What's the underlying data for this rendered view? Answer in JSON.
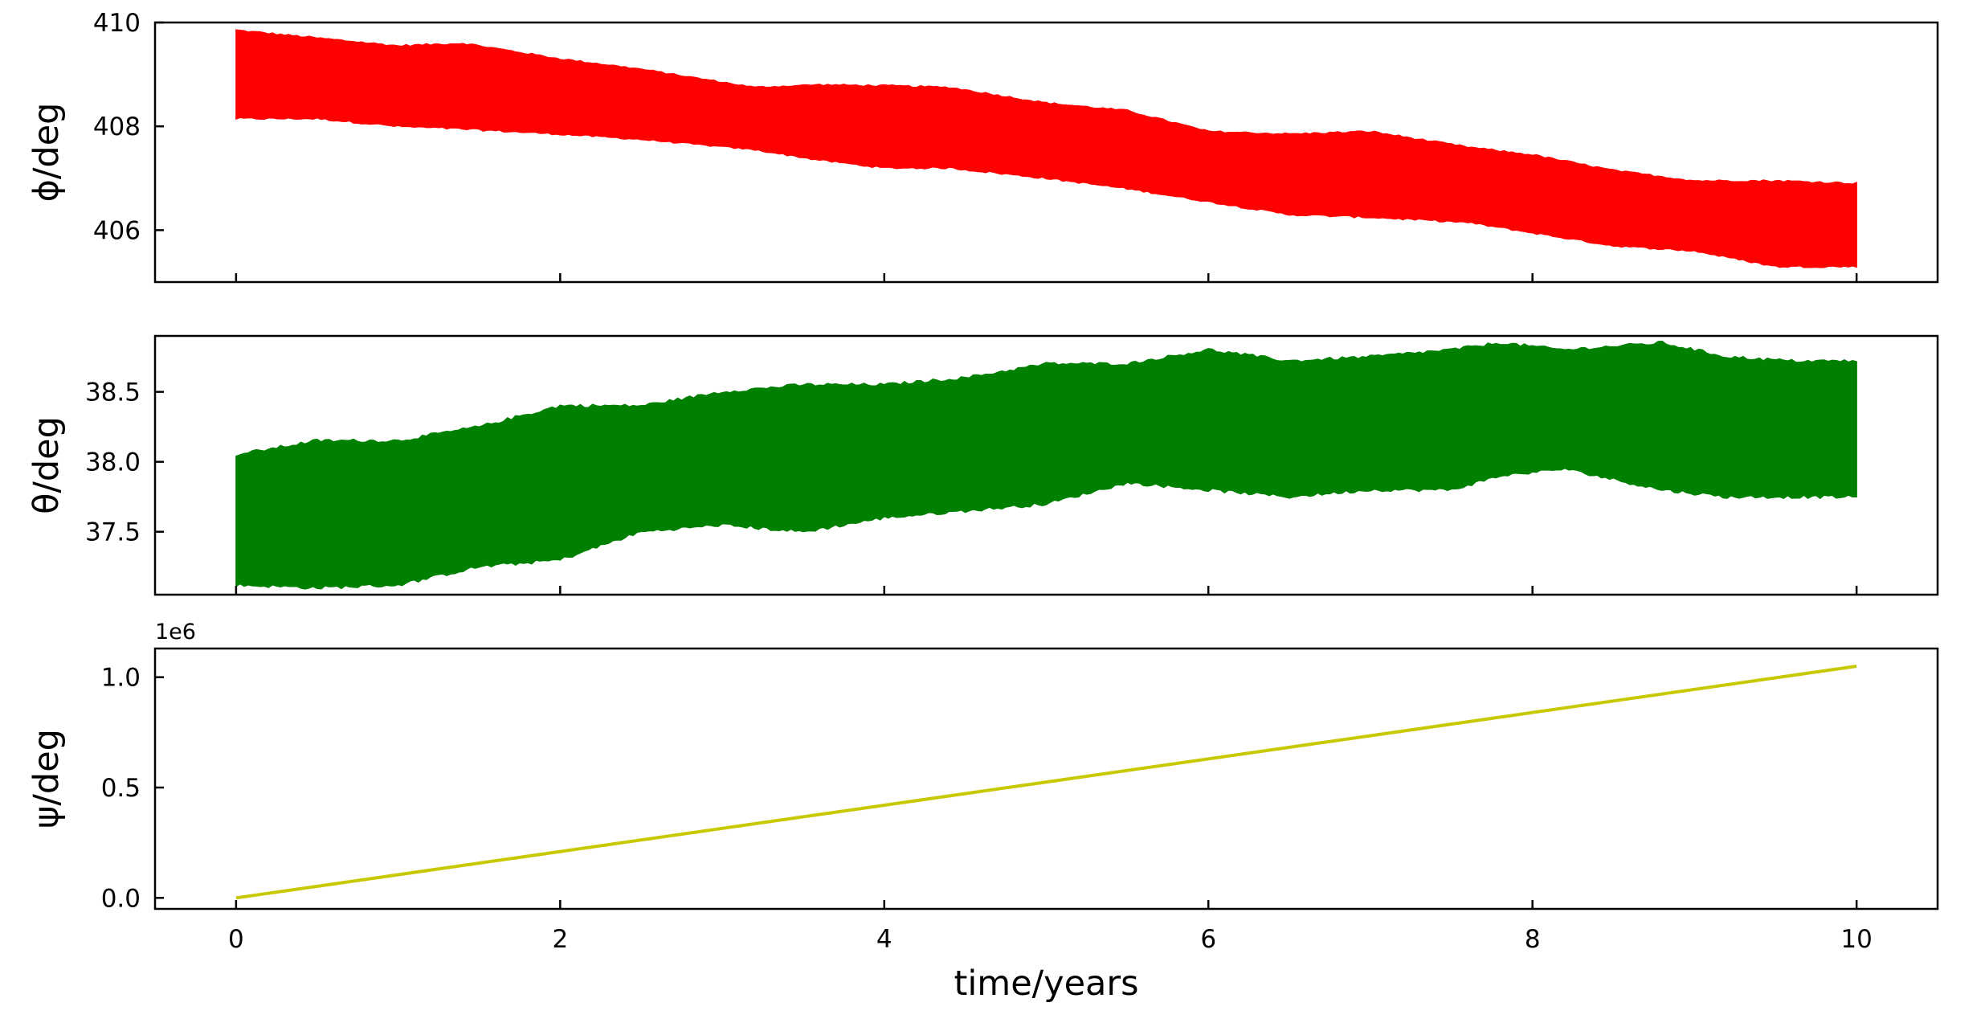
{
  "chart_data": [
    {
      "type": "line",
      "ylabel": "ϕ/deg",
      "ylim": [
        405.0,
        410.0
      ],
      "yticks": [
        406,
        408,
        410
      ],
      "ytick_labels": [
        "406",
        "408",
        "410"
      ],
      "xlim": [
        -0.5,
        10.5
      ],
      "xticks": [
        0,
        2,
        4,
        6,
        8,
        10
      ],
      "color": "#ff0000",
      "series": [
        {
          "x": [
            0,
            0.5,
            1.0,
            1.4,
            2.0,
            2.5,
            3.2,
            3.6,
            4.0,
            4.4,
            5.0,
            5.5,
            6.0,
            6.5,
            7.0,
            7.6,
            8.0,
            8.5,
            9.0,
            9.5,
            10.0
          ],
          "upper": [
            409.85,
            409.7,
            409.55,
            409.6,
            409.3,
            409.1,
            408.75,
            408.8,
            408.78,
            408.75,
            408.45,
            408.3,
            407.9,
            407.85,
            407.9,
            407.6,
            407.45,
            407.15,
            406.95,
            406.95,
            406.9
          ],
          "lower": [
            408.15,
            408.15,
            408.0,
            407.95,
            407.85,
            407.75,
            407.55,
            407.35,
            407.2,
            407.2,
            407.0,
            406.8,
            406.55,
            406.3,
            406.25,
            406.15,
            405.95,
            405.7,
            405.6,
            405.3,
            405.3
          ]
        }
      ]
    },
    {
      "type": "line",
      "ylabel": "θ/deg",
      "ylim": [
        37.05,
        38.9
      ],
      "yticks": [
        37.5,
        38.0,
        38.5
      ],
      "ytick_labels": [
        "37.5",
        "38.0",
        "38.5"
      ],
      "xlim": [
        -0.5,
        10.5
      ],
      "xticks": [
        0,
        2,
        4,
        6,
        8,
        10
      ],
      "color": "#008000",
      "series": [
        {
          "x": [
            0,
            0.5,
            1.0,
            1.5,
            2.0,
            2.5,
            3.0,
            3.5,
            4.0,
            4.5,
            5.0,
            5.5,
            6.0,
            6.5,
            7.0,
            7.5,
            7.8,
            8.2,
            8.8,
            9.2,
            9.6,
            10.0
          ],
          "upper": [
            38.05,
            38.15,
            38.15,
            38.25,
            38.4,
            38.4,
            38.5,
            38.55,
            38.55,
            38.6,
            38.7,
            38.7,
            38.8,
            38.72,
            38.75,
            38.8,
            38.85,
            38.8,
            38.85,
            38.75,
            38.72,
            38.72
          ],
          "lower": [
            37.12,
            37.1,
            37.12,
            37.25,
            37.3,
            37.5,
            37.55,
            37.5,
            37.6,
            37.65,
            37.7,
            37.85,
            37.8,
            37.75,
            37.8,
            37.8,
            37.9,
            37.95,
            37.8,
            37.75,
            37.75,
            37.75
          ]
        }
      ]
    },
    {
      "type": "line",
      "ylabel": "ψ/deg",
      "ylim": [
        -0.05,
        1.13
      ],
      "yticks": [
        0.0,
        0.5,
        1.0
      ],
      "ytick_labels": [
        "0.0",
        "0.5",
        "1.0"
      ],
      "y_offset_label": "1e6",
      "xlim": [
        -0.5,
        10.5
      ],
      "xticks": [
        0,
        2,
        4,
        6,
        8,
        10
      ],
      "xtick_labels": [
        "0",
        "2",
        "4",
        "6",
        "8",
        "10"
      ],
      "xlabel": "time/years",
      "color": "#c8c800",
      "series": [
        {
          "x": [
            0,
            10
          ],
          "y": [
            0.0,
            1.05
          ]
        }
      ]
    }
  ]
}
